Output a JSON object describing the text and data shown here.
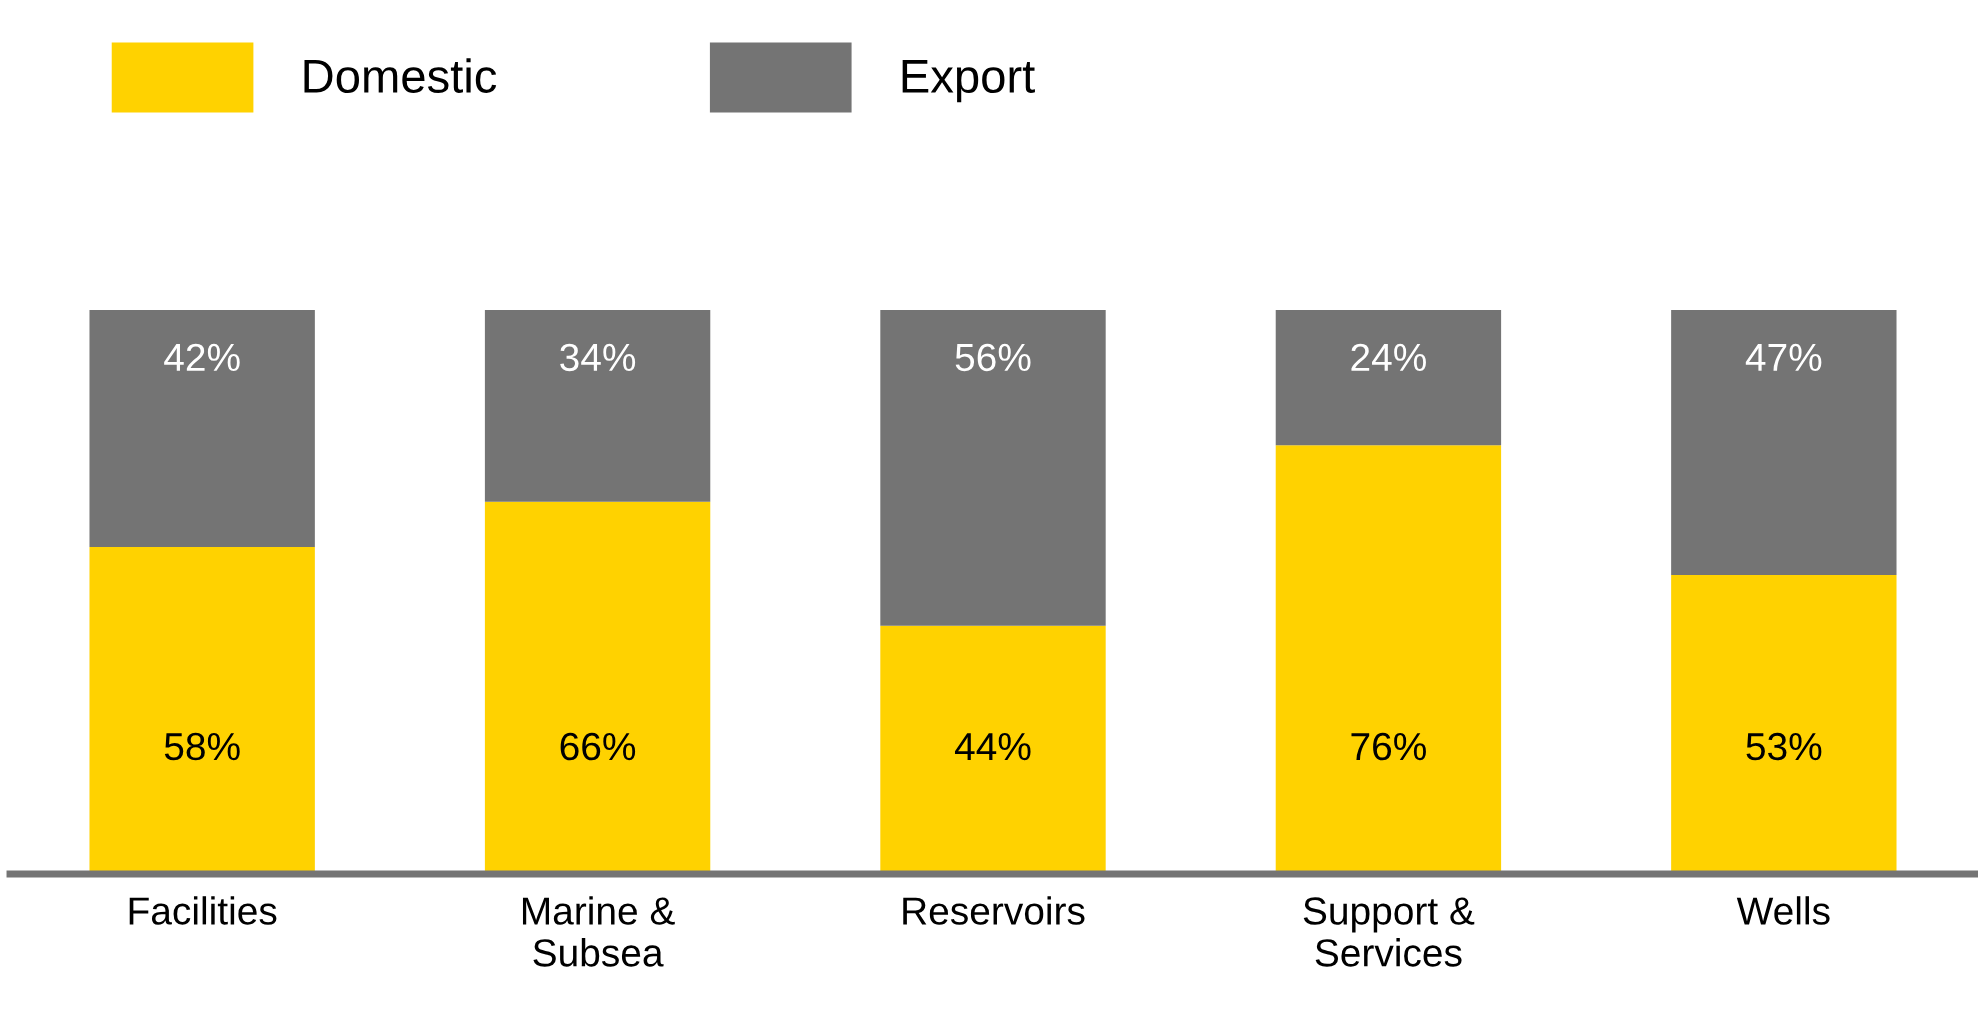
{
  "chart_data": {
    "type": "bar",
    "stacked": true,
    "categories": [
      "Facilities",
      "Marine &\nSubsea",
      "Reservoirs",
      "Support &\nServices",
      "Wells"
    ],
    "series": [
      {
        "name": "Domestic",
        "color": "#ffd200",
        "values": [
          58,
          66,
          44,
          76,
          53
        ],
        "value_labels": [
          "58%",
          "66%",
          "44%",
          "76%",
          "53%"
        ]
      },
      {
        "name": "Export",
        "color": "#747474",
        "values": [
          42,
          34,
          56,
          24,
          47
        ],
        "value_labels": [
          "42%",
          "34%",
          "56%",
          "24%",
          "47%"
        ]
      }
    ],
    "legend": "top left",
    "grid": false
  }
}
